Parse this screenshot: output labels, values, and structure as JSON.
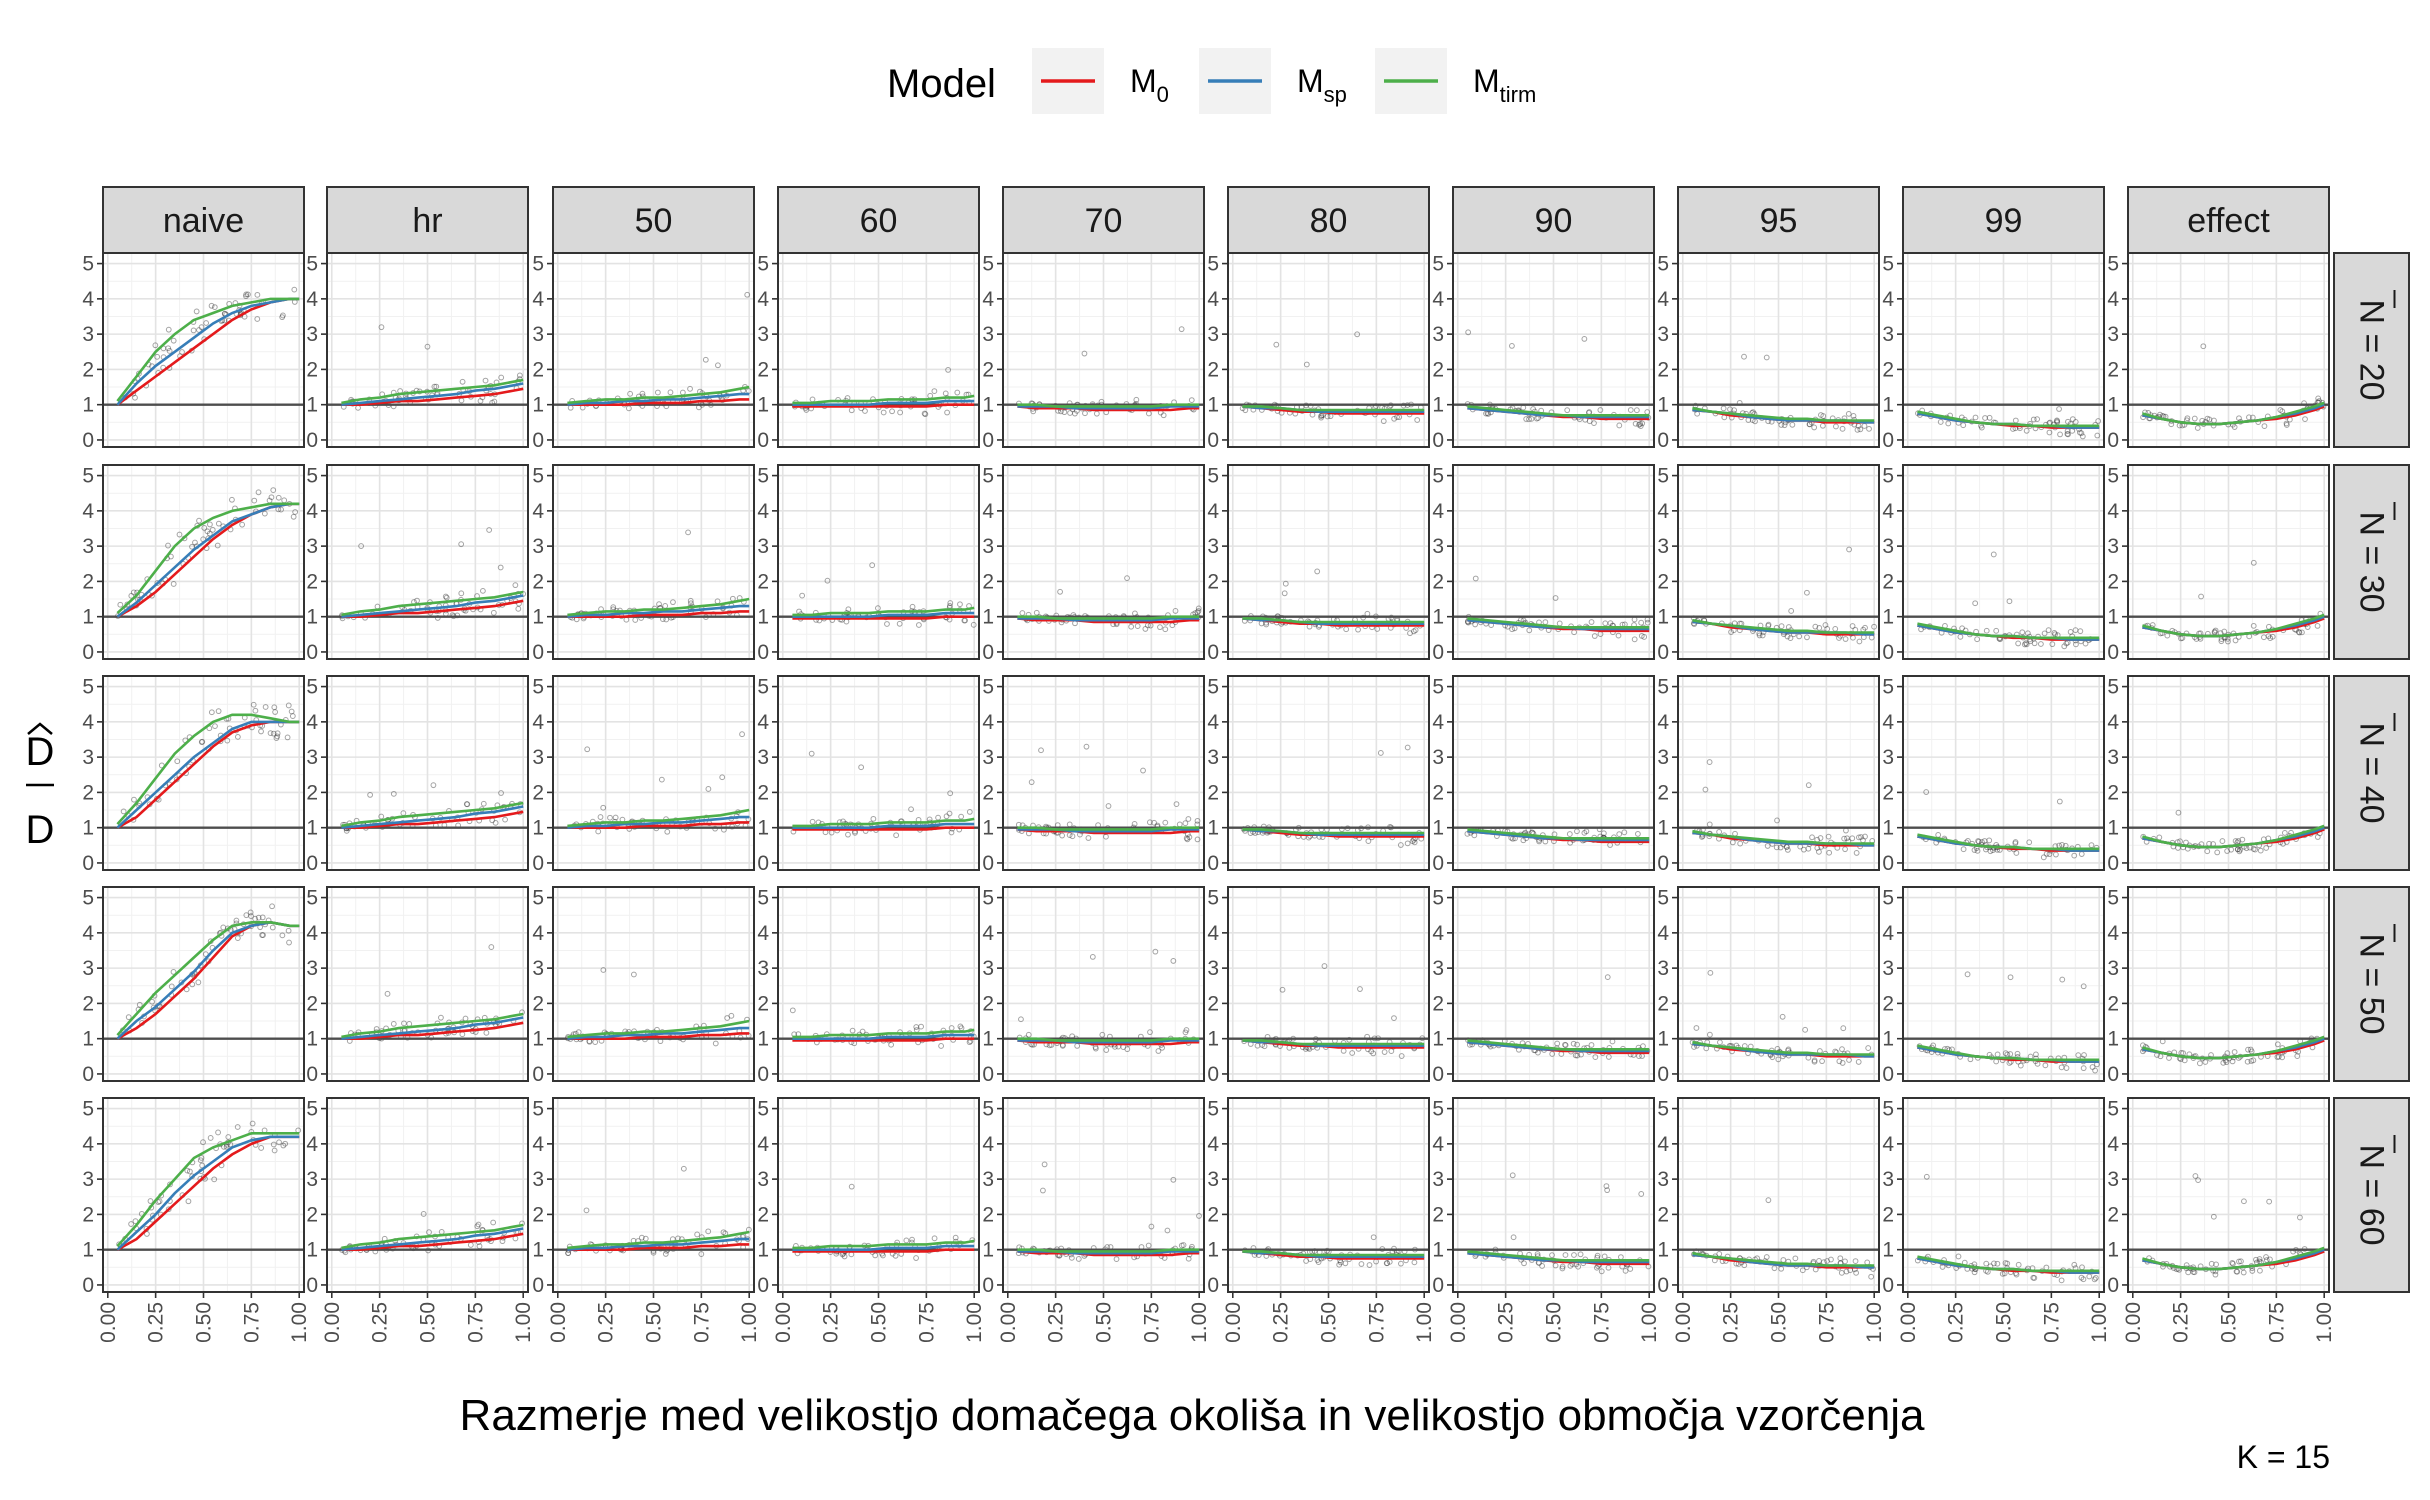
{
  "chart_data": {
    "type": "scatter",
    "xlabel": "Razmerje med velikostjo domačega okoliša in velikostjo območja vzorčenja",
    "ylabel_num": "D",
    "ylabel_den": "D",
    "caption": "K = 15",
    "legend": {
      "title": "Model",
      "position": "top",
      "items": [
        {
          "label": "M",
          "sub": "0",
          "color": "#E41A1C"
        },
        {
          "label": "M",
          "sub": "sp",
          "color": "#377EB8"
        },
        {
          "label": "M",
          "sub": "tirm",
          "color": "#4DAF4A"
        }
      ]
    },
    "columns": [
      "naive",
      "hr",
      "50",
      "60",
      "70",
      "80",
      "90",
      "95",
      "99",
      "effect"
    ],
    "rows": [
      "N = 20",
      "N = 30",
      "N = 40",
      "N = 50",
      "N = 60"
    ],
    "xlim": [
      0,
      1
    ],
    "ylim": [
      0,
      5
    ],
    "x_ticks": [
      "0.00",
      "0.25",
      "0.50",
      "0.75",
      "1.00"
    ],
    "y_ticks": [
      "0",
      "1",
      "2",
      "3",
      "4",
      "5"
    ],
    "reference_line_y": 1,
    "grid": true,
    "series_curves": {
      "x": [
        0.05,
        0.15,
        0.25,
        0.35,
        0.45,
        0.55,
        0.65,
        0.75,
        0.85,
        0.95,
        1.0
      ],
      "curves": [
        {
          "column": "naive",
          "row": "N = 20",
          "M0": [
            1.0,
            1.4,
            1.8,
            2.2,
            2.6,
            3.0,
            3.4,
            3.7,
            3.9,
            4.0,
            4.0
          ],
          "Msp": [
            1.0,
            1.6,
            2.1,
            2.5,
            2.9,
            3.3,
            3.6,
            3.8,
            3.9,
            4.0,
            4.0
          ],
          "Mtirm": [
            1.1,
            1.8,
            2.5,
            3.0,
            3.4,
            3.6,
            3.8,
            3.9,
            4.0,
            4.0,
            4.0
          ]
        },
        {
          "column": "naive",
          "row": "N = 30",
          "M0": [
            1.0,
            1.3,
            1.7,
            2.2,
            2.7,
            3.2,
            3.6,
            3.9,
            4.1,
            4.2,
            4.2
          ],
          "Msp": [
            1.0,
            1.4,
            1.9,
            2.4,
            2.9,
            3.3,
            3.7,
            3.9,
            4.1,
            4.2,
            4.2
          ],
          "Mtirm": [
            1.1,
            1.6,
            2.3,
            3.0,
            3.5,
            3.8,
            4.0,
            4.1,
            4.2,
            4.2,
            4.2
          ]
        },
        {
          "column": "naive",
          "row": "N = 40",
          "M0": [
            1.0,
            1.3,
            1.8,
            2.3,
            2.8,
            3.3,
            3.7,
            3.9,
            4.0,
            4.0,
            4.0
          ],
          "Msp": [
            1.0,
            1.5,
            2.0,
            2.5,
            3.0,
            3.4,
            3.8,
            4.0,
            4.0,
            4.0,
            4.0
          ],
          "Mtirm": [
            1.1,
            1.7,
            2.4,
            3.1,
            3.6,
            4.0,
            4.2,
            4.2,
            4.1,
            4.0,
            4.0
          ]
        },
        {
          "column": "naive",
          "row": "N = 50",
          "M0": [
            1.0,
            1.3,
            1.7,
            2.2,
            2.7,
            3.3,
            3.9,
            4.2,
            4.3,
            4.2,
            4.2
          ],
          "Msp": [
            1.0,
            1.5,
            1.9,
            2.4,
            2.9,
            3.5,
            4.0,
            4.2,
            4.3,
            4.2,
            4.2
          ],
          "Mtirm": [
            1.1,
            1.7,
            2.3,
            2.8,
            3.3,
            3.8,
            4.2,
            4.3,
            4.3,
            4.2,
            4.2
          ]
        },
        {
          "column": "naive",
          "row": "N = 60",
          "M0": [
            1.0,
            1.3,
            1.8,
            2.3,
            2.8,
            3.3,
            3.7,
            4.0,
            4.2,
            4.2,
            4.2
          ],
          "Msp": [
            1.0,
            1.5,
            2.0,
            2.6,
            3.1,
            3.5,
            3.9,
            4.1,
            4.2,
            4.2,
            4.2
          ],
          "Mtirm": [
            1.1,
            1.7,
            2.4,
            3.0,
            3.6,
            3.9,
            4.1,
            4.3,
            4.3,
            4.3,
            4.3
          ]
        },
        {
          "column": "hr",
          "row": "all",
          "M0": [
            1.0,
            1.0,
            1.05,
            1.1,
            1.1,
            1.15,
            1.2,
            1.25,
            1.3,
            1.4,
            1.45
          ],
          "Msp": [
            1.0,
            1.05,
            1.1,
            1.15,
            1.2,
            1.25,
            1.3,
            1.4,
            1.45,
            1.55,
            1.6
          ],
          "Mtirm": [
            1.05,
            1.15,
            1.2,
            1.3,
            1.35,
            1.4,
            1.45,
            1.5,
            1.55,
            1.65,
            1.7
          ]
        },
        {
          "column": "50",
          "row": "all",
          "M0": [
            1.0,
            1.0,
            1.0,
            1.0,
            1.05,
            1.05,
            1.05,
            1.1,
            1.1,
            1.15,
            1.15
          ],
          "Msp": [
            1.0,
            1.05,
            1.05,
            1.1,
            1.1,
            1.15,
            1.15,
            1.2,
            1.25,
            1.3,
            1.3
          ],
          "Mtirm": [
            1.05,
            1.1,
            1.15,
            1.15,
            1.2,
            1.2,
            1.25,
            1.3,
            1.35,
            1.45,
            1.5
          ]
        },
        {
          "column": "60",
          "row": "all",
          "M0": [
            0.95,
            0.95,
            0.95,
            0.95,
            0.95,
            0.95,
            0.95,
            0.95,
            1.0,
            1.0,
            1.0
          ],
          "Msp": [
            1.0,
            1.0,
            1.0,
            1.0,
            1.0,
            1.05,
            1.05,
            1.05,
            1.1,
            1.1,
            1.1
          ],
          "Mtirm": [
            1.05,
            1.05,
            1.1,
            1.1,
            1.1,
            1.15,
            1.15,
            1.15,
            1.2,
            1.2,
            1.25
          ]
        },
        {
          "column": "70",
          "row": "all",
          "M0": [
            0.95,
            0.9,
            0.9,
            0.9,
            0.85,
            0.85,
            0.85,
            0.85,
            0.85,
            0.9,
            0.9
          ],
          "Msp": [
            0.95,
            0.95,
            0.95,
            0.9,
            0.9,
            0.9,
            0.9,
            0.9,
            0.95,
            0.95,
            0.95
          ],
          "Mtirm": [
            1.0,
            1.0,
            0.95,
            0.95,
            0.95,
            0.95,
            0.95,
            0.95,
            1.0,
            1.0,
            1.0
          ]
        },
        {
          "column": "80",
          "row": "all",
          "M0": [
            0.95,
            0.9,
            0.85,
            0.8,
            0.8,
            0.75,
            0.75,
            0.75,
            0.75,
            0.75,
            0.75
          ],
          "Msp": [
            0.95,
            0.9,
            0.9,
            0.85,
            0.8,
            0.8,
            0.8,
            0.8,
            0.8,
            0.8,
            0.8
          ],
          "Mtirm": [
            0.95,
            0.95,
            0.9,
            0.85,
            0.85,
            0.85,
            0.85,
            0.85,
            0.85,
            0.85,
            0.85
          ]
        },
        {
          "column": "90",
          "row": "all",
          "M0": [
            0.9,
            0.85,
            0.8,
            0.75,
            0.7,
            0.65,
            0.65,
            0.6,
            0.6,
            0.6,
            0.6
          ],
          "Msp": [
            0.9,
            0.85,
            0.8,
            0.75,
            0.7,
            0.7,
            0.65,
            0.65,
            0.65,
            0.65,
            0.65
          ],
          "Mtirm": [
            0.95,
            0.9,
            0.85,
            0.8,
            0.75,
            0.7,
            0.7,
            0.7,
            0.7,
            0.7,
            0.7
          ]
        },
        {
          "column": "95",
          "row": "all",
          "M0": [
            0.85,
            0.8,
            0.7,
            0.65,
            0.6,
            0.55,
            0.55,
            0.5,
            0.5,
            0.5,
            0.5
          ],
          "Msp": [
            0.85,
            0.8,
            0.75,
            0.65,
            0.6,
            0.55,
            0.55,
            0.55,
            0.55,
            0.5,
            0.5
          ],
          "Mtirm": [
            0.9,
            0.8,
            0.75,
            0.7,
            0.65,
            0.6,
            0.6,
            0.55,
            0.55,
            0.55,
            0.55
          ]
        },
        {
          "column": "99",
          "row": "all",
          "M0": [
            0.75,
            0.65,
            0.55,
            0.5,
            0.45,
            0.4,
            0.4,
            0.35,
            0.35,
            0.35,
            0.35
          ],
          "Msp": [
            0.75,
            0.65,
            0.55,
            0.5,
            0.45,
            0.45,
            0.4,
            0.4,
            0.35,
            0.35,
            0.35
          ],
          "Mtirm": [
            0.8,
            0.7,
            0.6,
            0.5,
            0.45,
            0.45,
            0.4,
            0.4,
            0.4,
            0.4,
            0.4
          ]
        },
        {
          "column": "effect",
          "row": "all",
          "M0": [
            0.7,
            0.6,
            0.5,
            0.45,
            0.45,
            0.5,
            0.55,
            0.6,
            0.7,
            0.85,
            0.95
          ],
          "Msp": [
            0.7,
            0.6,
            0.5,
            0.45,
            0.45,
            0.5,
            0.55,
            0.65,
            0.75,
            0.9,
            1.0
          ],
          "Mtirm": [
            0.75,
            0.6,
            0.5,
            0.45,
            0.45,
            0.5,
            0.55,
            0.65,
            0.8,
            0.95,
            1.05
          ]
        }
      ]
    }
  }
}
